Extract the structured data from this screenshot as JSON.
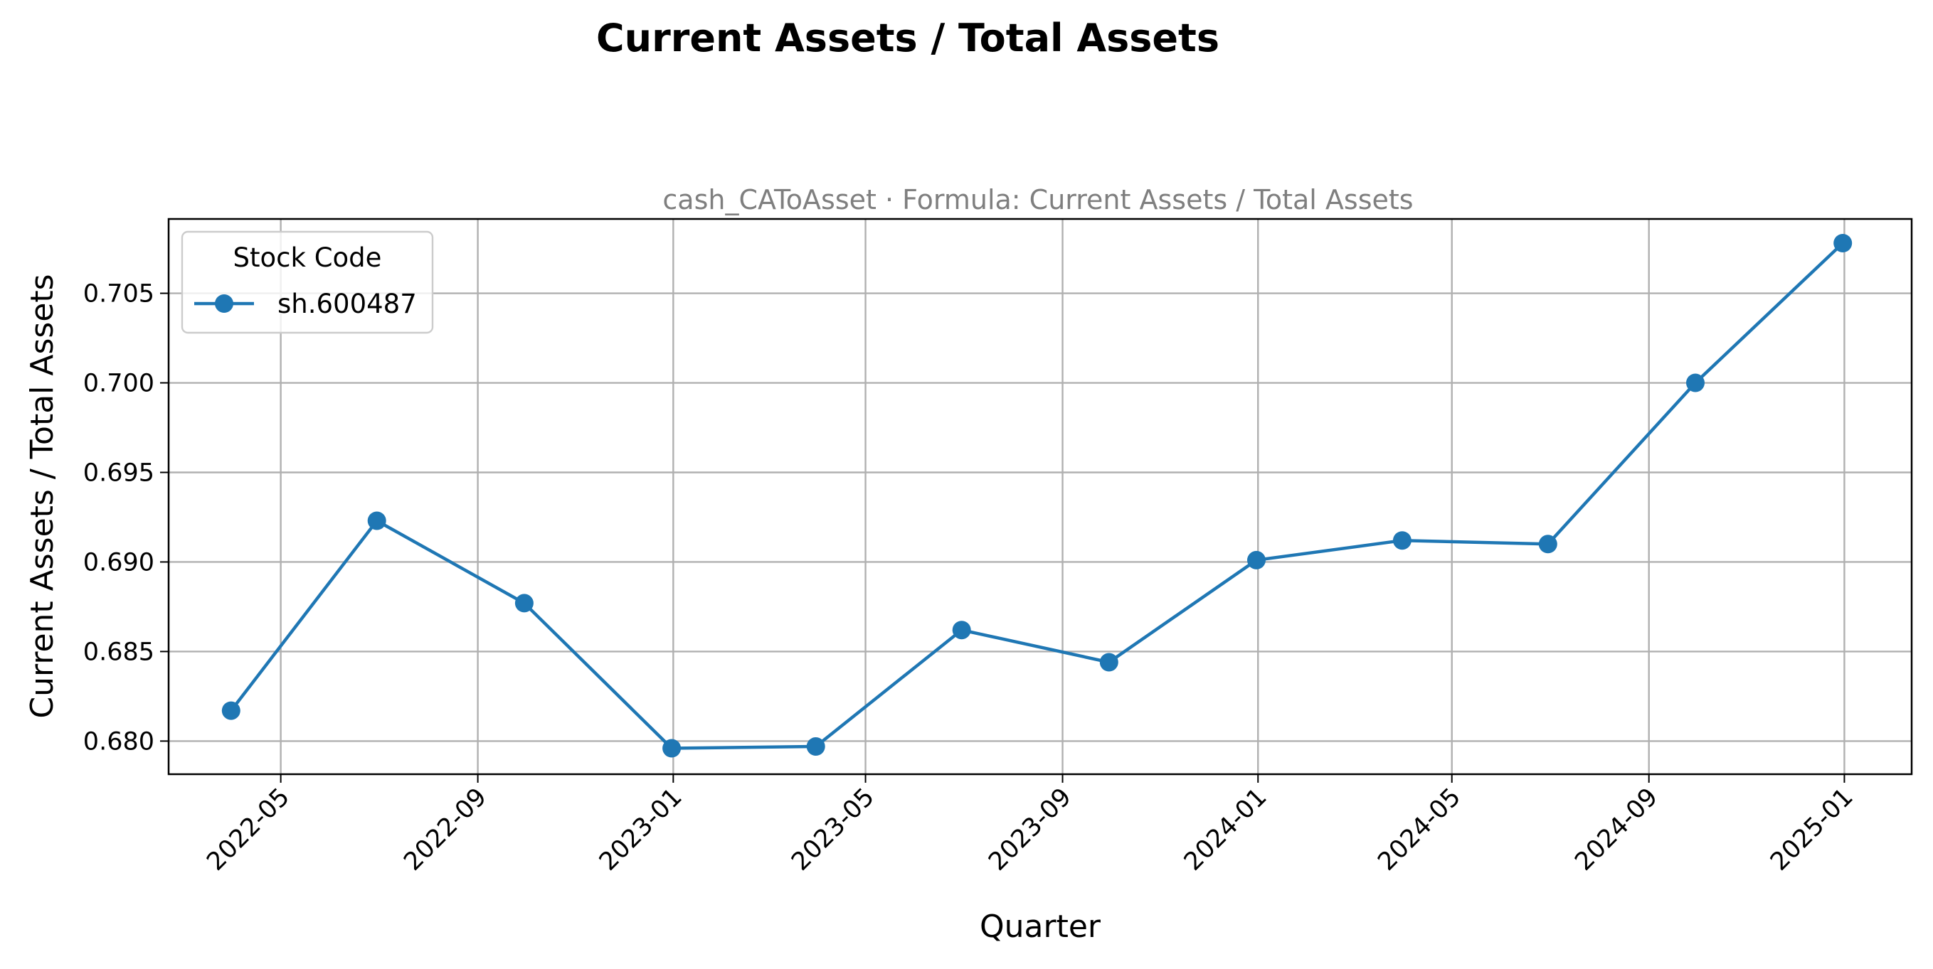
{
  "figure": {
    "suptitle": "Current Assets / Total Assets",
    "subtitle": "cash_CAToAsset · Formula: Current Assets / Total Assets"
  },
  "chart_data": {
    "type": "line",
    "title": "cash_CAToAsset · Formula: Current Assets / Total Assets",
    "xlabel": "Quarter",
    "ylabel": "Current Assets / Total Assets",
    "x_tick_labels": [
      "2022-05",
      "2022-09",
      "2023-01",
      "2023-05",
      "2023-09",
      "2024-01",
      "2024-05",
      "2024-09",
      "2025-01"
    ],
    "y_tick_labels": [
      "0.680",
      "0.685",
      "0.690",
      "0.695",
      "0.700",
      "0.705"
    ],
    "y_ticks": [
      0.68,
      0.685,
      0.69,
      0.695,
      0.7,
      0.705
    ],
    "xlim": [
      "2022-02-20",
      "2025-02-12"
    ],
    "ylim": [
      0.67815,
      0.70915
    ],
    "grid": true,
    "legend": {
      "title": "Stock Code",
      "placement": "top-left"
    },
    "colors": {
      "series": "#1f77b4"
    },
    "series": [
      {
        "name": "sh.600487",
        "x": [
          "2022-03-31",
          "2022-06-30",
          "2022-09-30",
          "2022-12-31",
          "2023-03-31",
          "2023-06-30",
          "2023-09-30",
          "2023-12-31",
          "2024-03-31",
          "2024-06-30",
          "2024-09-30",
          "2024-12-31"
        ],
        "values": [
          0.6817,
          0.6923,
          0.6877,
          0.6796,
          0.6797,
          0.6862,
          0.6844,
          0.6901,
          0.6912,
          0.691,
          0.7,
          0.7078
        ]
      }
    ]
  }
}
